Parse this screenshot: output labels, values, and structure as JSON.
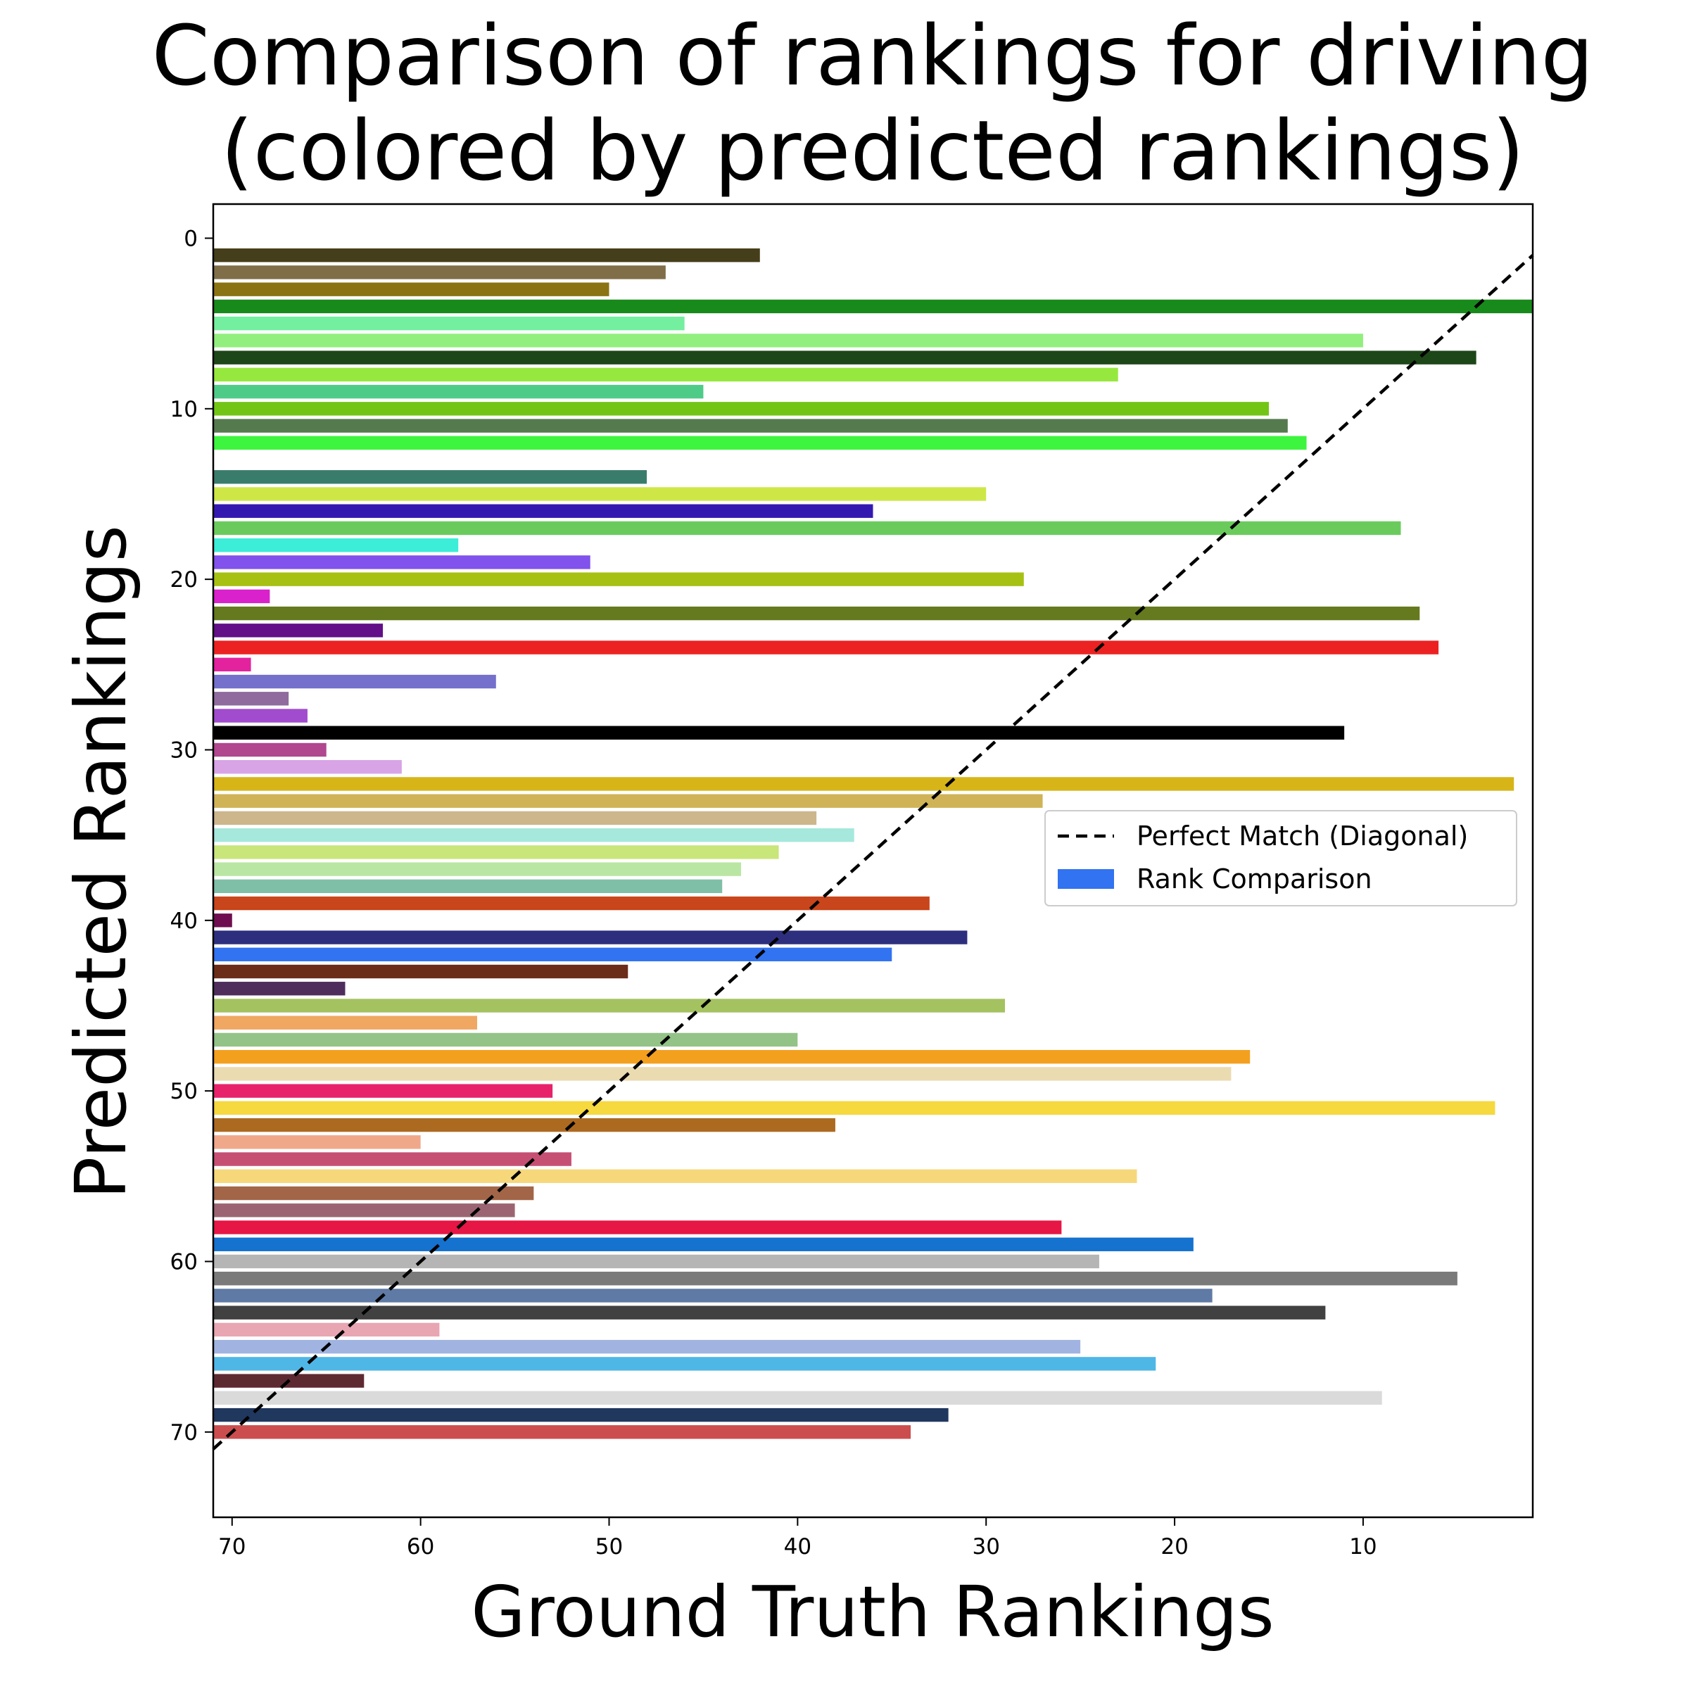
{
  "chart_data": {
    "type": "bar",
    "orientation": "horizontal",
    "title": [
      "Comparison of rankings for driving",
      "(colored by predicted rankings)"
    ],
    "xlabel": "Ground Truth Rankings",
    "ylabel": "Predicted Rankings",
    "xlim": [
      71,
      1
    ],
    "ylim": [
      75,
      -2
    ],
    "x_inverted": true,
    "y_inverted": true,
    "xticks": [
      70,
      60,
      50,
      40,
      30,
      20,
      10
    ],
    "yticks": [
      0,
      10,
      20,
      30,
      40,
      50,
      60,
      70
    ],
    "grid": false,
    "legend": {
      "placement": "right",
      "entries": [
        {
          "label": "Perfect Match (Diagonal)",
          "style": "dashed-line",
          "color": "#000000"
        },
        {
          "label": "Rank Comparison",
          "style": "patch",
          "color": "#3173f0"
        }
      ]
    },
    "diagonal": {
      "from": [
        71,
        71
      ],
      "to": [
        0,
        0
      ],
      "style": "dashed",
      "color": "#000000"
    },
    "bars": [
      {
        "predicted": 1,
        "ground_truth": 42,
        "color": "#453e1a"
      },
      {
        "predicted": 2,
        "ground_truth": 47,
        "color": "#806e49"
      },
      {
        "predicted": 3,
        "ground_truth": 50,
        "color": "#8a7312"
      },
      {
        "predicted": 4,
        "ground_truth": 1,
        "color": "#188a1c"
      },
      {
        "predicted": 5,
        "ground_truth": 46,
        "color": "#74ef9f"
      },
      {
        "predicted": 6,
        "ground_truth": 10,
        "color": "#92ef7e"
      },
      {
        "predicted": 7,
        "ground_truth": 4,
        "color": "#1d4718"
      },
      {
        "predicted": 8,
        "ground_truth": 23,
        "color": "#97e83e"
      },
      {
        "predicted": 9,
        "ground_truth": 45,
        "color": "#4fcb88"
      },
      {
        "predicted": 10,
        "ground_truth": 15,
        "color": "#73c515"
      },
      {
        "predicted": 11,
        "ground_truth": 14,
        "color": "#557a4e"
      },
      {
        "predicted": 12,
        "ground_truth": 13,
        "color": "#3df53e"
      },
      {
        "predicted": 14,
        "ground_truth": 48,
        "color": "#3a7c6c"
      },
      {
        "predicted": 15,
        "ground_truth": 30,
        "color": "#cee746"
      },
      {
        "predicted": 16,
        "ground_truth": 36,
        "color": "#3419b0"
      },
      {
        "predicted": 17,
        "ground_truth": 8,
        "color": "#6acb5c"
      },
      {
        "predicted": 18,
        "ground_truth": 58,
        "color": "#3cedd8"
      },
      {
        "predicted": 19,
        "ground_truth": 51,
        "color": "#8152ec"
      },
      {
        "predicted": 20,
        "ground_truth": 28,
        "color": "#a7c112"
      },
      {
        "predicted": 21,
        "ground_truth": 68,
        "color": "#d921cc"
      },
      {
        "predicted": 22,
        "ground_truth": 7,
        "color": "#65791e"
      },
      {
        "predicted": 23,
        "ground_truth": 62,
        "color": "#620f88"
      },
      {
        "predicted": 24,
        "ground_truth": 6,
        "color": "#ec2222"
      },
      {
        "predicted": 25,
        "ground_truth": 69,
        "color": "#e3229e"
      },
      {
        "predicted": 26,
        "ground_truth": 56,
        "color": "#7470cc"
      },
      {
        "predicted": 27,
        "ground_truth": 67,
        "color": "#8f6b9e"
      },
      {
        "predicted": 28,
        "ground_truth": 66,
        "color": "#a14cce"
      },
      {
        "predicted": 29,
        "ground_truth": 11,
        "color": "#000000"
      },
      {
        "predicted": 30,
        "ground_truth": 65,
        "color": "#b0478f"
      },
      {
        "predicted": 31,
        "ground_truth": 61,
        "color": "#d8a4e6"
      },
      {
        "predicted": 32,
        "ground_truth": 2,
        "color": "#d7b518"
      },
      {
        "predicted": 33,
        "ground_truth": 27,
        "color": "#cfb356"
      },
      {
        "predicted": 34,
        "ground_truth": 39,
        "color": "#cdb68c"
      },
      {
        "predicted": 35,
        "ground_truth": 37,
        "color": "#a6e8dc"
      },
      {
        "predicted": 36,
        "ground_truth": 41,
        "color": "#c8e67a"
      },
      {
        "predicted": 37,
        "ground_truth": 43,
        "color": "#bae6a3"
      },
      {
        "predicted": 38,
        "ground_truth": 44,
        "color": "#7fbfa8"
      },
      {
        "predicted": 39,
        "ground_truth": 33,
        "color": "#c9451b"
      },
      {
        "predicted": 40,
        "ground_truth": 70,
        "color": "#6e0e50"
      },
      {
        "predicted": 41,
        "ground_truth": 31,
        "color": "#2d2f7e"
      },
      {
        "predicted": 42,
        "ground_truth": 35,
        "color": "#3173f0"
      },
      {
        "predicted": 43,
        "ground_truth": 49,
        "color": "#6b2c18"
      },
      {
        "predicted": 44,
        "ground_truth": 64,
        "color": "#4e2d5c"
      },
      {
        "predicted": 45,
        "ground_truth": 29,
        "color": "#a5c261"
      },
      {
        "predicted": 46,
        "ground_truth": 57,
        "color": "#f0a762"
      },
      {
        "predicted": 47,
        "ground_truth": 40,
        "color": "#93c387"
      },
      {
        "predicted": 48,
        "ground_truth": 16,
        "color": "#f4a01f"
      },
      {
        "predicted": 49,
        "ground_truth": 17,
        "color": "#ebdbb1"
      },
      {
        "predicted": 50,
        "ground_truth": 53,
        "color": "#e7226b"
      },
      {
        "predicted": 51,
        "ground_truth": 3,
        "color": "#f6d83f"
      },
      {
        "predicted": 52,
        "ground_truth": 38,
        "color": "#ac6a21"
      },
      {
        "predicted": 53,
        "ground_truth": 60,
        "color": "#f0a88a"
      },
      {
        "predicted": 54,
        "ground_truth": 52,
        "color": "#c65074"
      },
      {
        "predicted": 55,
        "ground_truth": 22,
        "color": "#f6d87b"
      },
      {
        "predicted": 56,
        "ground_truth": 54,
        "color": "#a26547"
      },
      {
        "predicted": 57,
        "ground_truth": 55,
        "color": "#9c6472"
      },
      {
        "predicted": 58,
        "ground_truth": 26,
        "color": "#e61645"
      },
      {
        "predicted": 59,
        "ground_truth": 19,
        "color": "#1572cf"
      },
      {
        "predicted": 60,
        "ground_truth": 24,
        "color": "#b5b5b5"
      },
      {
        "predicted": 61,
        "ground_truth": 5,
        "color": "#7a7a7a"
      },
      {
        "predicted": 62,
        "ground_truth": 18,
        "color": "#5f7aa4"
      },
      {
        "predicted": 63,
        "ground_truth": 12,
        "color": "#414141"
      },
      {
        "predicted": 64,
        "ground_truth": 59,
        "color": "#e8a5b2"
      },
      {
        "predicted": 65,
        "ground_truth": 25,
        "color": "#a1b4e1"
      },
      {
        "predicted": 66,
        "ground_truth": 21,
        "color": "#4fb7e6"
      },
      {
        "predicted": 67,
        "ground_truth": 63,
        "color": "#5e2a32"
      },
      {
        "predicted": 68,
        "ground_truth": 9,
        "color": "#dadada"
      },
      {
        "predicted": 69,
        "ground_truth": 32,
        "color": "#20375e"
      },
      {
        "predicted": 70,
        "ground_truth": 34,
        "color": "#cc4d4d"
      }
    ]
  }
}
